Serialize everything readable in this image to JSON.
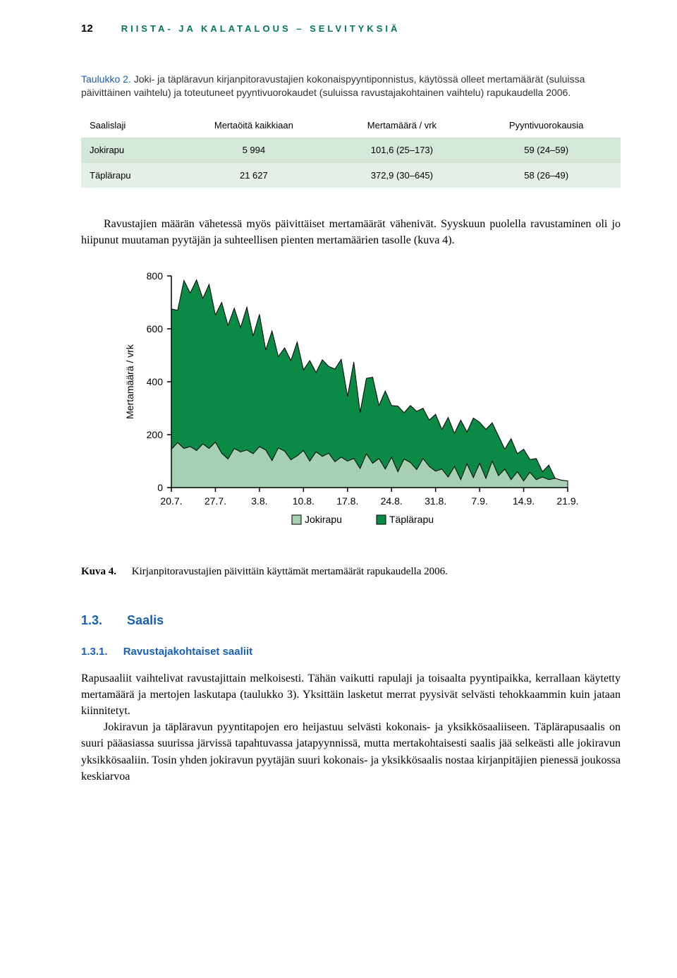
{
  "page_number": "12",
  "header_title": "RIISTA- JA KALATALOUS – SELVITYKSIÄ",
  "header_color": "#047b48",
  "accent_blue": "#1a5fb4",
  "table_caption_label": "Taulukko 2.",
  "table_caption_text": "Joki- ja täpläravun kirjanpitoravustajien kokonaispyyntiponnistus, käytössä olleet mertamäärät (suluissa päivittäinen vaihtelu) ja toteutuneet pyyntivuorokaudet (suluissa ravustajakohtainen vaihtelu) rapukaudella 2006.",
  "table": {
    "columns": [
      "Saalislaji",
      "Mertaöitä kaikkiaan",
      "Mertamäärä / vrk",
      "Pyyntivuorokausia"
    ],
    "rows": [
      [
        "Jokirapu",
        "5 994",
        "101,6 (25–173)",
        "59 (24–59)"
      ],
      [
        "Täplärapu",
        "21 627",
        "372,9 (30–645)",
        "58 (26–49)"
      ]
    ],
    "row_bg": [
      "#d4e8da",
      "#e3f0e8"
    ]
  },
  "body_para_1": "Ravustajien määrän vähetessä myös päivittäiset mertamäärät vähenivät. Syyskuun puolella ravustaminen oli jo hiipunut muutaman pyytäjän ja suhteellisen pienten mertamäärien tasolle (kuva 4).",
  "chart": {
    "type": "stacked-area",
    "ylabel": "Mertamäärä / vrk",
    "ylim": [
      0,
      800
    ],
    "ytick_step": 200,
    "yticks": [
      0,
      200,
      400,
      600,
      800
    ],
    "x_categories": [
      "20.7.",
      "27.7.",
      "3.8.",
      "10.8.",
      "17.8.",
      "24.8.",
      "31.8.",
      "7.9.",
      "14.9.",
      "21.9."
    ],
    "n_points": 64,
    "series": [
      {
        "name": "Jokirapu",
        "color": "#a5d0b1",
        "stroke": "#000000",
        "values": [
          145,
          170,
          148,
          155,
          140,
          165,
          148,
          172,
          130,
          108,
          148,
          135,
          142,
          128,
          155,
          142,
          102,
          150,
          138,
          105,
          120,
          140,
          100,
          135,
          118,
          130,
          98,
          115,
          100,
          110,
          72,
          128,
          92,
          110,
          70,
          115,
          60,
          108,
          95,
          68,
          110,
          80,
          62,
          70,
          40,
          80,
          30,
          90,
          38,
          92,
          35,
          100,
          45,
          70,
          30,
          60,
          25,
          58,
          30,
          40,
          30,
          35,
          28,
          25
        ]
      },
      {
        "name": "Täplärapu",
        "color": "#0a8a45",
        "stroke": "#000000",
        "values": [
          530,
          500,
          635,
          580,
          645,
          550,
          620,
          480,
          570,
          505,
          530,
          470,
          540,
          445,
          500,
          378,
          490,
          345,
          390,
          375,
          430,
          305,
          380,
          300,
          365,
          328,
          350,
          370,
          245,
          365,
          212,
          285,
          325,
          200,
          295,
          195,
          248,
          175,
          215,
          220,
          190,
          175,
          215,
          150,
          225,
          125,
          225,
          120,
          225,
          155,
          185,
          145,
          150,
          75,
          155,
          68,
          120,
          48,
          80,
          20,
          55,
          0,
          0,
          0
        ]
      }
    ],
    "legend": [
      {
        "label": "Jokirapu",
        "color": "#a5d0b1"
      },
      {
        "label": "Täplärapu",
        "color": "#0a8a45"
      }
    ],
    "plot_bg": "#ffffff",
    "axis_color": "#000000",
    "label_fontsize": 14,
    "tick_fontsize": 14
  },
  "figcap_label": "Kuva 4.",
  "figcap_text": "Kirjanpitoravustajien päivittäin käyttämät mertamäärät rapukaudella 2006.",
  "sec_no": "1.3.",
  "sec_title": "Saalis",
  "subsec_no": "1.3.1.",
  "subsec_title": "Ravustajakohtaiset saaliit",
  "para2": "Rapusaaliit vaihtelivat ravustajittain melkoisesti. Tähän vaikutti rapulaji ja toisaalta pyyntipaikka, kerrallaan käytetty mertamäärä ja mertojen laskutapa (taulukko 3). Yksittäin lasketut merrat pyysivät selvästi tehokkaammin kuin jataan kiinnitetyt.",
  "para3": "Jokiravun ja täpläravun pyyntitapojen ero heijastuu selvästi kokonais- ja yksikkösaaliiseen. Täplärapusaalis on suuri pääasiassa suurissa järvissä tapahtuvassa jatapyynnissä, mutta mertakohtaisesti saalis jää selkeästi alle jokiravun yksikkösaaliin. Tosin yhden jokiravun pyytäjän suuri kokonais- ja yksikkösaalis nostaa kirjanpitäjien pienessä joukossa keskiarvoa"
}
